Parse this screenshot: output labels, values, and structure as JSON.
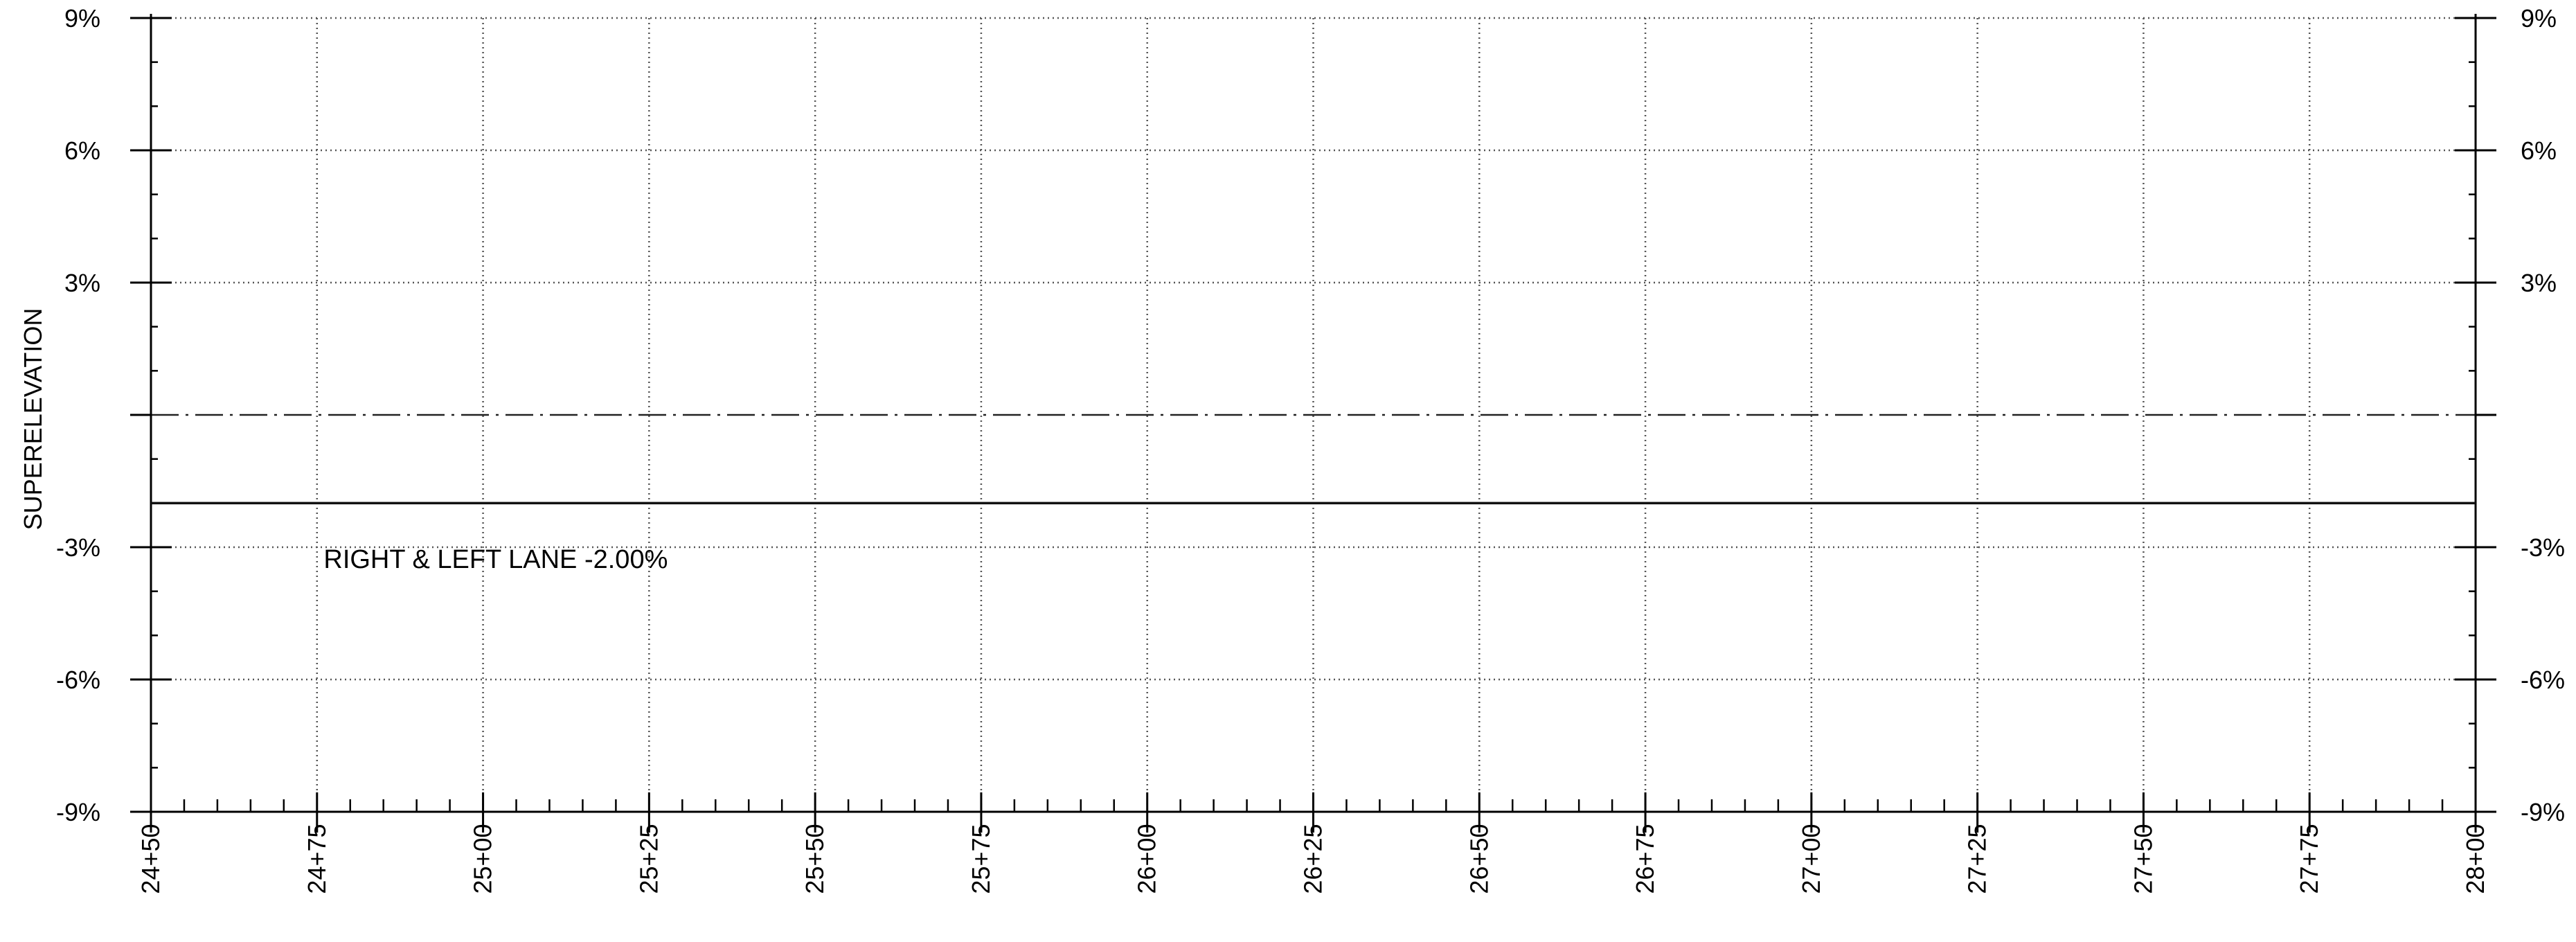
{
  "chart_data": {
    "type": "line",
    "ylabel": "SUPERELEVATION",
    "x_axis": {
      "min": 2450,
      "max": 2800,
      "major_step": 25,
      "minor_step": 5,
      "tick_labels": [
        "24+50",
        "24+75",
        "25+00",
        "25+25",
        "25+50",
        "25+75",
        "26+00",
        "26+25",
        "26+50",
        "26+75",
        "27+00",
        "27+25",
        "27+50",
        "27+75",
        "28+00"
      ]
    },
    "y_axis": {
      "min": -9,
      "max": 9,
      "unit": "%",
      "minor_step": 1,
      "tick_labels": [
        {
          "value": 9,
          "label": "9%"
        },
        {
          "value": 6,
          "label": "6%"
        },
        {
          "value": 3,
          "label": "3%"
        },
        {
          "value": -3,
          "label": "-3%"
        },
        {
          "value": -6,
          "label": "-6%"
        },
        {
          "value": -9,
          "label": "-9%"
        }
      ],
      "grid_values": [
        9,
        6,
        3,
        -3,
        -6
      ]
    },
    "grid": true,
    "reference_line": {
      "y": 0,
      "style": "dash-dot"
    },
    "series": [
      {
        "x": [
          2450,
          2800
        ],
        "y": [
          -2.0,
          -2.0
        ]
      }
    ],
    "annotations": [
      {
        "text": "RIGHT & LEFT LANE -2.00%",
        "x": 2476,
        "y": -3.25
      }
    ]
  }
}
